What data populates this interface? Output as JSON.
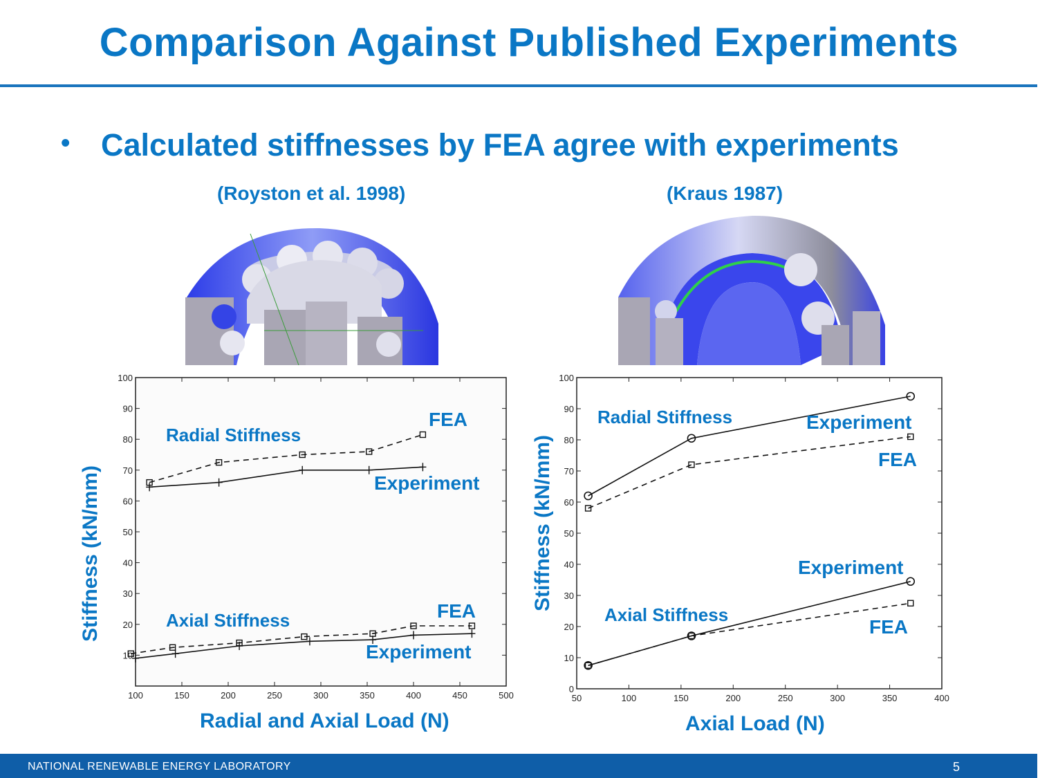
{
  "slide": {
    "title": "Comparison Against Published Experiments",
    "bullet_symbol": "•",
    "bullet": "Calculated stiffnesses by FEA agree with experiments",
    "citation_left": "(Royston et al. 1998)",
    "citation_right": "(Kraus 1987)",
    "footer": "NATIONAL RENEWABLE ENERGY LABORATORY",
    "page_number": "5"
  },
  "images": {
    "left": "bearing-fea-model-deep-groove",
    "right": "bearing-fea-model-tapered"
  },
  "colors": {
    "accent": "#0a77c5",
    "footer": "#0f5ea8",
    "bearing_blue": "#3b45f0",
    "bearing_grey": "#a9a6b4",
    "fea_green": "#2fd04a"
  },
  "chart_data": [
    {
      "type": "line",
      "xlabel": "Radial and Axial Load (N)",
      "ylabel": "Stiffness (kN/mm)",
      "xlim": [
        100,
        500
      ],
      "ylim": [
        0,
        100
      ],
      "xticks": [
        100,
        150,
        200,
        250,
        300,
        350,
        400,
        450,
        500
      ],
      "yticks": [
        10,
        20,
        30,
        40,
        50,
        60,
        70,
        80,
        90,
        100
      ],
      "grid": false,
      "series": [
        {
          "name": "FEA",
          "group": "Radial Stiffness",
          "style": "dashed",
          "marker": "square",
          "x": [
            115,
            190,
            280,
            352,
            410
          ],
          "y": [
            66,
            72.5,
            75,
            76,
            81.5
          ]
        },
        {
          "name": "Experiment",
          "group": "Radial Stiffness",
          "style": "solid",
          "marker": "plus",
          "x": [
            115,
            190,
            280,
            352,
            410
          ],
          "y": [
            64.5,
            66,
            70,
            70,
            71
          ]
        },
        {
          "name": "FEA",
          "group": "Axial Stiffness",
          "style": "dashed",
          "marker": "square",
          "x": [
            95,
            140,
            212,
            282,
            356,
            400,
            463
          ],
          "y": [
            10.5,
            12.5,
            14,
            16,
            17,
            19.5,
            19.5
          ]
        },
        {
          "name": "Experiment",
          "group": "Axial Stiffness",
          "style": "solid",
          "marker": "plus",
          "x": [
            100,
            143,
            212,
            288,
            356,
            400,
            463
          ],
          "y": [
            9,
            10.5,
            13,
            14.5,
            15,
            16.5,
            17
          ]
        }
      ],
      "annotations": {
        "radial_group": "Radial Stiffness",
        "axial_group": "Axial Stiffness",
        "radial_fea": "FEA",
        "radial_experiment": "Experiment",
        "axial_fea": "FEA",
        "axial_experiment": "Experiment"
      }
    },
    {
      "type": "line",
      "xlabel": "Axial Load (N)",
      "ylabel": "Stiffness (kN/mm)",
      "xlim": [
        50,
        400
      ],
      "ylim": [
        0,
        100
      ],
      "xticks": [
        50,
        100,
        150,
        200,
        250,
        300,
        350,
        400
      ],
      "yticks": [
        0,
        10,
        20,
        30,
        40,
        50,
        60,
        70,
        80,
        90,
        100
      ],
      "grid": false,
      "series": [
        {
          "name": "Experiment",
          "group": "Radial Stiffness",
          "style": "solid",
          "marker": "circle",
          "x": [
            61,
            160,
            370
          ],
          "y": [
            62,
            80.5,
            94
          ]
        },
        {
          "name": "FEA",
          "group": "Radial Stiffness",
          "style": "dashed",
          "marker": "square",
          "x": [
            61,
            160,
            370
          ],
          "y": [
            58,
            72,
            81
          ]
        },
        {
          "name": "Experiment",
          "group": "Axial Stiffness",
          "style": "solid",
          "marker": "circle",
          "x": [
            61,
            160,
            370
          ],
          "y": [
            7.5,
            17,
            34.5
          ]
        },
        {
          "name": "FEA",
          "group": "Axial Stiffness",
          "style": "dashed",
          "marker": "square",
          "x": [
            61,
            160,
            370
          ],
          "y": [
            7.5,
            17,
            27.5
          ]
        }
      ],
      "annotations": {
        "radial_group": "Radial Stiffness",
        "axial_group": "Axial Stiffness",
        "radial_fea": "FEA",
        "radial_experiment": "Experiment",
        "axial_fea": "FEA",
        "axial_experiment": "Experiment"
      }
    }
  ]
}
